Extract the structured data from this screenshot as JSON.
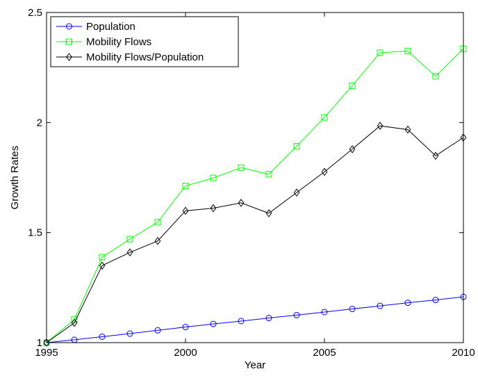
{
  "chart_data": {
    "type": "line",
    "title": "",
    "xlabel": "Year",
    "ylabel": "Growth Rates",
    "xlim": [
      1995,
      2010
    ],
    "ylim": [
      1,
      2.5
    ],
    "xticks": [
      1995,
      2000,
      2005,
      2010
    ],
    "yticks": [
      1,
      1.5,
      2,
      2.5
    ],
    "xtick_labels": [
      "1995",
      "2000",
      "2005",
      "2010"
    ],
    "ytick_labels": [
      "1",
      "1.5",
      "2",
      "2.5"
    ],
    "grid": false,
    "legend_position": "top-left",
    "x": [
      1995,
      1996,
      1997,
      1998,
      1999,
      2000,
      2001,
      2002,
      2003,
      2004,
      2005,
      2006,
      2007,
      2008,
      2009,
      2010
    ],
    "series": [
      {
        "name": "Population",
        "color": "#0000ff",
        "marker": "circle",
        "values": [
          1.0,
          1.013,
          1.027,
          1.041,
          1.056,
          1.071,
          1.085,
          1.098,
          1.112,
          1.125,
          1.139,
          1.153,
          1.167,
          1.181,
          1.194,
          1.208
        ]
      },
      {
        "name": "Mobility Flows",
        "color": "#00ff00",
        "marker": "square",
        "values": [
          1.0,
          1.105,
          1.388,
          1.47,
          1.547,
          1.712,
          1.748,
          1.795,
          1.765,
          1.892,
          2.023,
          2.167,
          2.317,
          2.325,
          2.21,
          2.335
        ]
      },
      {
        "name": "Mobility Flows/Population",
        "color": "#000000",
        "marker": "diamond",
        "values": [
          1.0,
          1.09,
          1.35,
          1.41,
          1.462,
          1.599,
          1.611,
          1.635,
          1.588,
          1.682,
          1.776,
          1.879,
          1.985,
          1.968,
          1.849,
          1.932
        ]
      }
    ]
  }
}
